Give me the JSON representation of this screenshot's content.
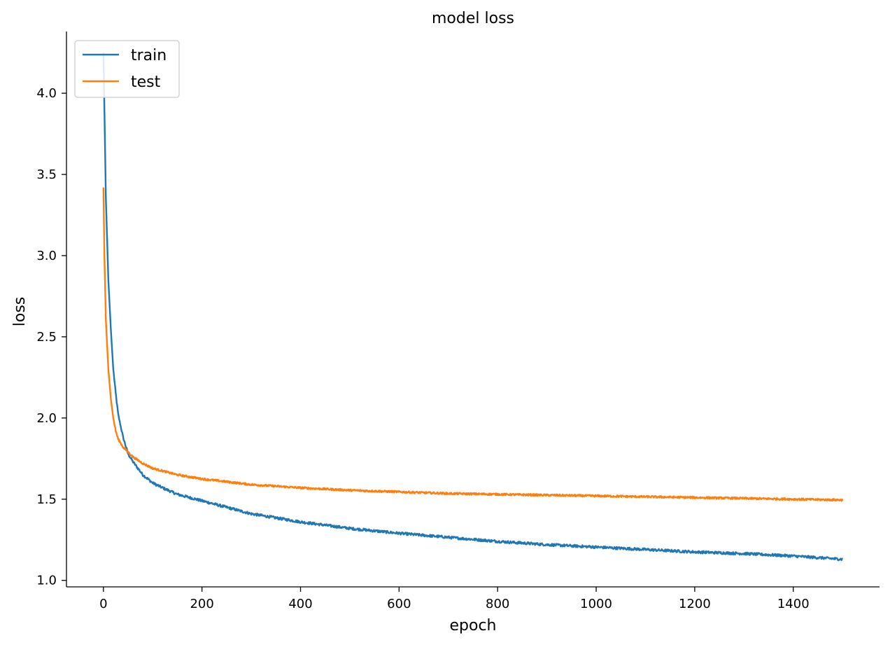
{
  "chart_data": {
    "type": "line",
    "title": "model loss",
    "xlabel": "epoch",
    "ylabel": "loss",
    "xlim": [
      -75,
      1575
    ],
    "ylim": [
      0.96,
      4.38
    ],
    "xticks": [
      0,
      200,
      400,
      600,
      800,
      1000,
      1200,
      1400
    ],
    "yticks": [
      1.0,
      1.5,
      2.0,
      2.5,
      3.0,
      3.5,
      4.0
    ],
    "xtick_labels": [
      "0",
      "200",
      "400",
      "600",
      "800",
      "1000",
      "1200",
      "1400"
    ],
    "ytick_labels": [
      "1.0",
      "1.5",
      "2.0",
      "2.5",
      "3.0",
      "3.5",
      "4.0"
    ],
    "grid": false,
    "legend": {
      "placement": "upper-left"
    },
    "series": [
      {
        "name": "train",
        "color": "#1f77b4",
        "noise": 0.008,
        "x": [
          0,
          2,
          5,
          10,
          15,
          20,
          25,
          30,
          40,
          50,
          60,
          70,
          80,
          100,
          120,
          150,
          200,
          250,
          300,
          400,
          500,
          600,
          700,
          800,
          900,
          1000,
          1100,
          1200,
          1300,
          1400,
          1500
        ],
        "y": [
          4.25,
          3.9,
          3.35,
          2.85,
          2.55,
          2.3,
          2.15,
          2.02,
          1.88,
          1.78,
          1.73,
          1.69,
          1.65,
          1.6,
          1.57,
          1.53,
          1.49,
          1.45,
          1.41,
          1.36,
          1.32,
          1.29,
          1.265,
          1.24,
          1.22,
          1.205,
          1.19,
          1.175,
          1.165,
          1.15,
          1.13
        ]
      },
      {
        "name": "test",
        "color": "#ff7f0e",
        "noise": 0.006,
        "x": [
          0,
          2,
          5,
          10,
          15,
          20,
          25,
          30,
          40,
          50,
          60,
          70,
          80,
          100,
          150,
          200,
          300,
          400,
          500,
          600,
          700,
          800,
          900,
          1000,
          1100,
          1200,
          1300,
          1400,
          1500
        ],
        "y": [
          3.42,
          3.0,
          2.6,
          2.3,
          2.12,
          2.0,
          1.92,
          1.87,
          1.82,
          1.79,
          1.76,
          1.74,
          1.72,
          1.69,
          1.65,
          1.625,
          1.59,
          1.57,
          1.555,
          1.545,
          1.535,
          1.53,
          1.525,
          1.52,
          1.515,
          1.51,
          1.505,
          1.5,
          1.495
        ]
      }
    ]
  }
}
